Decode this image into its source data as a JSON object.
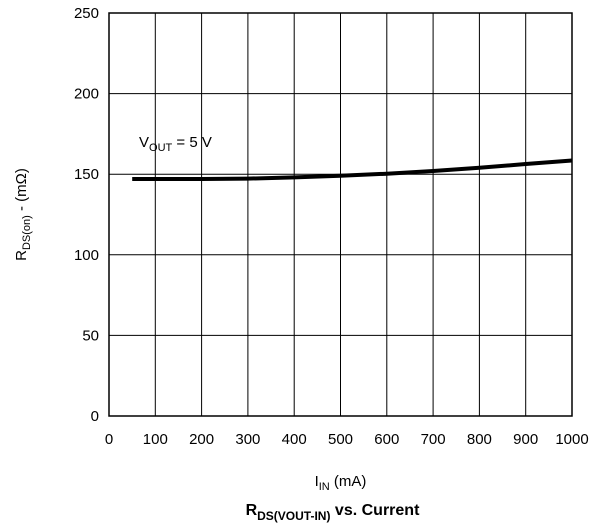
{
  "chart_data": {
    "type": "line",
    "title": {
      "main": "R",
      "sub": "DS(VOUT-IN)",
      "rest": " vs. Current"
    },
    "xlabel": {
      "main": "I",
      "sub": "IN",
      "rest": " (mA)"
    },
    "ylabel": {
      "main": "R",
      "sub": "DS(on)",
      "rest": " - (mΩ)"
    },
    "xlim": [
      0,
      1000
    ],
    "ylim": [
      0,
      250
    ],
    "x_ticks": [
      0,
      100,
      200,
      300,
      400,
      500,
      600,
      700,
      800,
      900,
      1000
    ],
    "y_ticks": [
      0,
      50,
      100,
      150,
      200,
      250
    ],
    "grid": true,
    "annotation": {
      "main": "V",
      "sub": "OUT",
      "rest": " = 5 V"
    },
    "series": [
      {
        "name": "",
        "color": "#000000",
        "x": [
          50,
          100,
          200,
          300,
          400,
          500,
          600,
          700,
          800,
          900,
          1000
        ],
        "y": [
          147,
          147,
          147,
          147.3,
          148,
          149,
          150.3,
          152,
          154,
          156.3,
          158.5
        ]
      }
    ]
  }
}
